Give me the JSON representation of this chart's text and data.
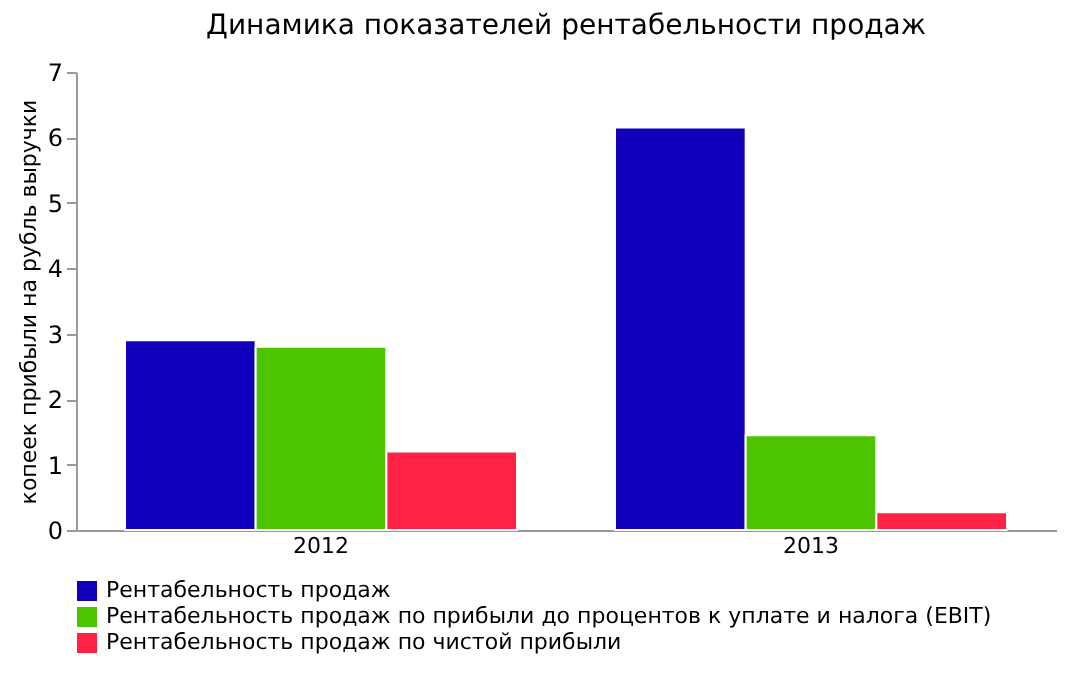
{
  "chart_data": {
    "type": "bar",
    "title": "Динамика показателей рентабельности продаж",
    "ylabel": "копеек прибыли на рубль выручки",
    "categories": [
      "2012",
      "2013"
    ],
    "series": [
      {
        "name": "Рентабельность продаж",
        "color": "#1100bb",
        "values": [
          2.9,
          6.15
        ]
      },
      {
        "name": "Рентабельность продаж по прибыли до процентов к уплате и налога (EBIT)",
        "color": "#4cc400",
        "values": [
          2.8,
          1.45
        ]
      },
      {
        "name": "Рентабельность продаж по чистой прибыли",
        "color": "#ff2244",
        "values": [
          1.2,
          0.27
        ]
      }
    ],
    "ylim": [
      0,
      7
    ],
    "yticks": [
      0,
      1,
      2,
      3,
      4,
      5,
      6,
      7
    ],
    "grid": false,
    "legend": "bottom"
  }
}
